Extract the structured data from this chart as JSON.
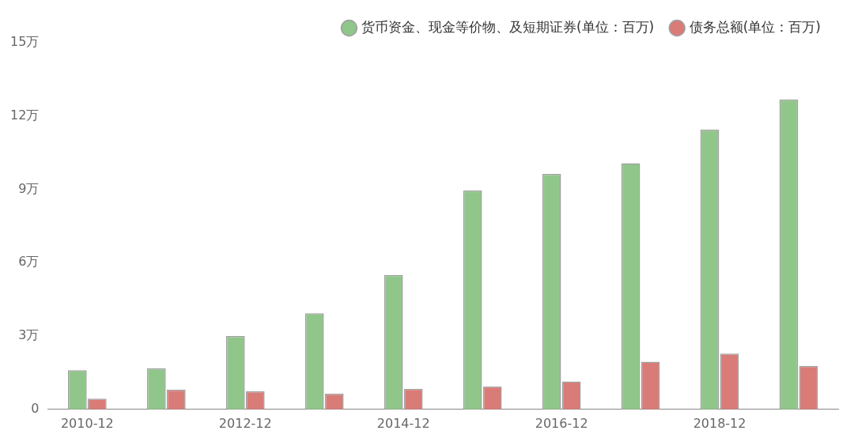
{
  "chart_data": {
    "type": "bar",
    "categories": [
      "2010-12",
      null,
      "2012-12",
      null,
      "2014-12",
      null,
      "2016-12",
      null,
      "2018-12",
      null
    ],
    "series": [
      {
        "name": "货币资金、现金等价物、及短期证券(单位：百万)",
        "color": "#90c68a",
        "values": [
          1.6,
          1.68,
          3.0,
          3.93,
          5.5,
          8.96,
          9.63,
          10.07,
          11.44,
          12.68
        ]
      },
      {
        "name": "债务总额(单位：百万)",
        "color": "#d97b77",
        "values": [
          0.44,
          0.81,
          0.74,
          0.64,
          0.84,
          0.94,
          1.14,
          1.95,
          2.28,
          1.78
        ]
      }
    ],
    "ylim": [
      0,
      15
    ],
    "yticks": [
      0,
      {
        "value": 3,
        "label": "3万"
      },
      {
        "value": 6,
        "label": "6万"
      },
      {
        "value": 9,
        "label": "9万"
      },
      {
        "value": 12,
        "label": "12万"
      },
      {
        "value": 15,
        "label": "15万"
      }
    ],
    "grid": false,
    "legend": "top right"
  }
}
